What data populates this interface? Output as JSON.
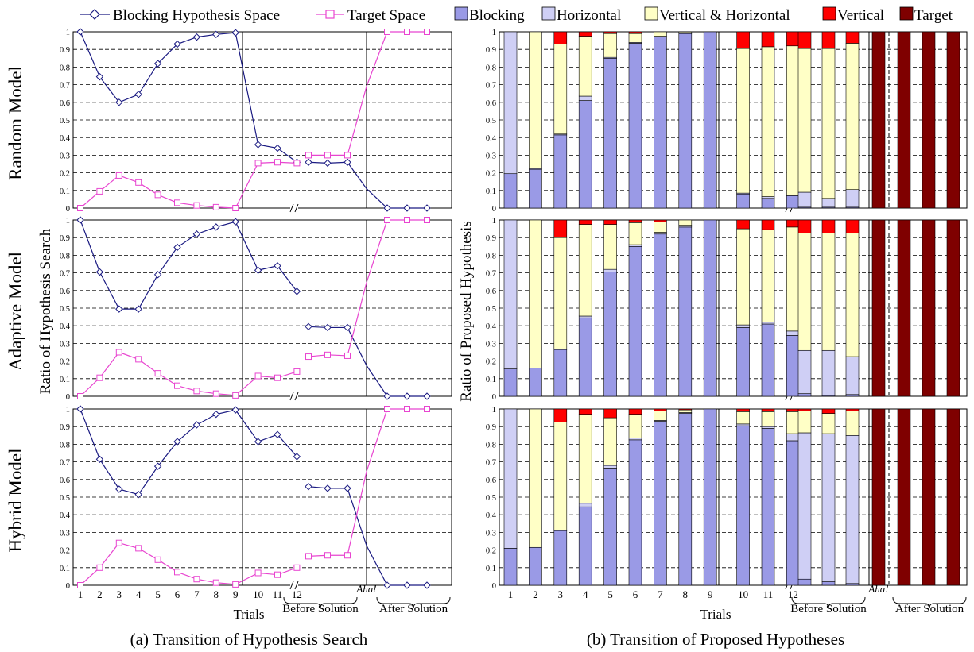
{
  "figure": {
    "caption_a": "(a) Transition of Hypothesis Search",
    "caption_b": "(b) Transition of Proposed Hypotheses",
    "label_aha": "Aha!",
    "label_before": "Before Solution",
    "label_after": "After Solution",
    "colors": {
      "blocking_line": "#1b1b82",
      "target_line": "#e845d0",
      "blocking_bar": "#9a9ae6",
      "horizontal_bar": "#cfcff5",
      "vh_bar": "#ffffc6",
      "vertical_bar": "#ff0000",
      "target_bar": "#7f0000"
    }
  },
  "chart_data": [
    {
      "type": "line",
      "panel": "left",
      "xlabel": "Trials",
      "ylabel": "Ratio of Hypothesis Search",
      "ylim": [
        0,
        1
      ],
      "y_ticks": [
        "0",
        "0.1",
        "0.2",
        "0.3",
        "0.4",
        "0.5",
        "0.6",
        "0.7",
        "0.8",
        "0.9",
        "1"
      ],
      "x_ticks": [
        "1",
        "2",
        "3",
        "4",
        "5",
        "6",
        "7",
        "8",
        "9",
        "10",
        "11",
        "12"
      ],
      "grid": "horizontal dashed",
      "legend": {
        "placement": "top",
        "entries": [
          {
            "name": "Blocking Hypothesis Space",
            "marker": "diamond"
          },
          {
            "name": "Target Space",
            "marker": "square"
          }
        ]
      },
      "x_segments": [
        "trials 1-9",
        "trials 10-12",
        "before solution (3 points)",
        "aha",
        "after solution (3 points)"
      ],
      "models": [
        {
          "name": "Random Model",
          "series": [
            {
              "name": "Blocking Hypothesis Space",
              "trials": [
                1.0,
                0.745,
                0.6,
                0.645,
                0.82,
                0.93,
                0.97,
                0.985,
                0.995,
                0.36,
                0.34,
                0.26
              ],
              "before": [
                0.26,
                0.255,
                0.26
              ],
              "aha": 0.11,
              "after": [
                0.0,
                0.0,
                0.0
              ]
            },
            {
              "name": "Target Space",
              "trials": [
                0.0,
                0.095,
                0.185,
                0.145,
                0.075,
                0.03,
                0.015,
                0.005,
                0.0,
                0.255,
                0.26,
                0.255
              ],
              "before": [
                0.3,
                0.3,
                0.3
              ],
              "aha": 0.69,
              "after": [
                1.0,
                1.0,
                1.0
              ]
            }
          ]
        },
        {
          "name": "Adaptive Model",
          "series": [
            {
              "name": "Blocking Hypothesis Space",
              "trials": [
                1.0,
                0.705,
                0.495,
                0.495,
                0.69,
                0.845,
                0.92,
                0.96,
                0.99,
                0.715,
                0.74,
                0.595
              ],
              "before": [
                0.395,
                0.39,
                0.39
              ],
              "aha": 0.175,
              "after": [
                0.0,
                0.0,
                0.0
              ]
            },
            {
              "name": "Target Space",
              "trials": [
                0.0,
                0.105,
                0.25,
                0.21,
                0.13,
                0.06,
                0.03,
                0.015,
                0.005,
                0.115,
                0.105,
                0.14
              ],
              "before": [
                0.225,
                0.235,
                0.23
              ],
              "aha": 0.645,
              "after": [
                1.0,
                1.0,
                1.0
              ]
            }
          ]
        },
        {
          "name": "Hybrid Model",
          "series": [
            {
              "name": "Blocking Hypothesis Space",
              "trials": [
                1.0,
                0.715,
                0.545,
                0.515,
                0.675,
                0.815,
                0.91,
                0.97,
                0.995,
                0.815,
                0.855,
                0.73
              ],
              "before": [
                0.56,
                0.55,
                0.55
              ],
              "aha": 0.225,
              "after": [
                0.0,
                0.0,
                0.0
              ]
            },
            {
              "name": "Target Space",
              "trials": [
                0.0,
                0.1,
                0.24,
                0.21,
                0.145,
                0.075,
                0.035,
                0.015,
                0.005,
                0.07,
                0.06,
                0.1
              ],
              "before": [
                0.165,
                0.17,
                0.17
              ],
              "aha": 0.645,
              "after": [
                1.0,
                1.0,
                1.0
              ]
            }
          ]
        }
      ]
    },
    {
      "type": "bar",
      "stacked": true,
      "panel": "right",
      "xlabel": "Trials",
      "ylabel": "Ratio of Proposed Hypothesis",
      "ylim": [
        0,
        1
      ],
      "y_ticks": [
        "0",
        "0.1",
        "0.2",
        "0.3",
        "0.4",
        "0.5",
        "0.6",
        "0.7",
        "0.8",
        "0.9",
        "1"
      ],
      "x_ticks": [
        "1",
        "2",
        "3",
        "4",
        "5",
        "6",
        "7",
        "8",
        "9",
        "10",
        "11",
        "12"
      ],
      "grid": "horizontal dashed",
      "legend": {
        "placement": "top",
        "entries": [
          "Blocking",
          "Horizontal",
          "Vertical & Horizontal",
          "Vertical",
          "Target"
        ]
      },
      "stack_order": [
        "Blocking",
        "Horizontal",
        "Vertical & Horizontal",
        "Vertical",
        "Target"
      ],
      "models": [
        {
          "name": "Random Model",
          "trials": [
            [
              0.195,
              0.805,
              0,
              0,
              0
            ],
            [
              0.22,
              0.005,
              0.775,
              0,
              0
            ],
            [
              0.415,
              0.005,
              0.51,
              0.07,
              0
            ],
            [
              0.61,
              0.025,
              0.34,
              0.025,
              0
            ],
            [
              0.85,
              0.005,
              0.135,
              0.01,
              0
            ],
            [
              0.935,
              0.005,
              0.05,
              0.01,
              0
            ],
            [
              0.97,
              0.005,
              0.025,
              0,
              0
            ],
            [
              0.99,
              0.005,
              0.005,
              0,
              0
            ],
            [
              1.0,
              0,
              0,
              0,
              0
            ],
            [
              0.08,
              0.005,
              0.82,
              0.095,
              0
            ],
            [
              0.055,
              0.01,
              0.85,
              0.085,
              0
            ],
            [
              0.07,
              0.005,
              0.845,
              0.08,
              0
            ]
          ],
          "before": [
            [
              0.005,
              0.085,
              0.815,
              0.095,
              0
            ],
            [
              0.005,
              0.05,
              0.85,
              0.095,
              0
            ],
            [
              0.005,
              0.1,
              0.83,
              0.065,
              0
            ]
          ],
          "aha": [
            0,
            0,
            0,
            0,
            1.0
          ],
          "after": [
            [
              0,
              0,
              0,
              0,
              1.0
            ],
            [
              0,
              0,
              0,
              0,
              1.0
            ],
            [
              0,
              0,
              0,
              0,
              1.0
            ]
          ]
        },
        {
          "name": "Adaptive Model",
          "trials": [
            [
              0.155,
              0.845,
              0,
              0,
              0
            ],
            [
              0.16,
              0,
              0.84,
              0,
              0
            ],
            [
              0.265,
              0,
              0.635,
              0.1,
              0
            ],
            [
              0.445,
              0.01,
              0.52,
              0.025,
              0
            ],
            [
              0.705,
              0.015,
              0.255,
              0.025,
              0
            ],
            [
              0.85,
              0.01,
              0.125,
              0.015,
              0
            ],
            [
              0.92,
              0.01,
              0.06,
              0.01,
              0
            ],
            [
              0.96,
              0.01,
              0.03,
              0,
              0
            ],
            [
              1.0,
              0,
              0,
              0,
              0
            ],
            [
              0.39,
              0.015,
              0.545,
              0.05,
              0
            ],
            [
              0.41,
              0.01,
              0.525,
              0.055,
              0
            ],
            [
              0.345,
              0.025,
              0.59,
              0.04,
              0
            ]
          ],
          "before": [
            [
              0.015,
              0.245,
              0.665,
              0.075,
              0
            ],
            [
              0.005,
              0.255,
              0.665,
              0.075,
              0
            ],
            [
              0.01,
              0.215,
              0.7,
              0.075,
              0
            ]
          ],
          "aha": [
            0,
            0,
            0,
            0,
            1.0
          ],
          "after": [
            [
              0,
              0,
              0,
              0,
              1.0
            ],
            [
              0,
              0,
              0,
              0,
              1.0
            ],
            [
              0,
              0,
              0,
              0,
              1.0
            ]
          ]
        },
        {
          "name": "Hybrid Model",
          "trials": [
            [
              0.21,
              0.79,
              0,
              0,
              0
            ],
            [
              0.215,
              0,
              0.785,
              0,
              0
            ],
            [
              0.31,
              0,
              0.615,
              0.075,
              0
            ],
            [
              0.445,
              0.02,
              0.505,
              0.03,
              0
            ],
            [
              0.665,
              0.015,
              0.27,
              0.05,
              0
            ],
            [
              0.825,
              0.01,
              0.135,
              0.03,
              0
            ],
            [
              0.93,
              0.005,
              0.055,
              0.01,
              0
            ],
            [
              0.975,
              0.005,
              0.015,
              0.005,
              0
            ],
            [
              1.0,
              0,
              0,
              0,
              0
            ],
            [
              0.905,
              0.01,
              0.07,
              0.015,
              0
            ],
            [
              0.89,
              0.01,
              0.085,
              0.015,
              0
            ],
            [
              0.82,
              0.04,
              0.125,
              0.015,
              0
            ]
          ],
          "before": [
            [
              0.035,
              0.83,
              0.125,
              0.01,
              0
            ],
            [
              0.02,
              0.84,
              0.115,
              0.025,
              0
            ],
            [
              0.01,
              0.84,
              0.14,
              0.01,
              0
            ]
          ],
          "aha": [
            0,
            0,
            0,
            0,
            1.0
          ],
          "after": [
            [
              0,
              0,
              0,
              0,
              1.0
            ],
            [
              0,
              0,
              0,
              0,
              1.0
            ],
            [
              0,
              0,
              0,
              0,
              1.0
            ]
          ]
        }
      ]
    }
  ]
}
